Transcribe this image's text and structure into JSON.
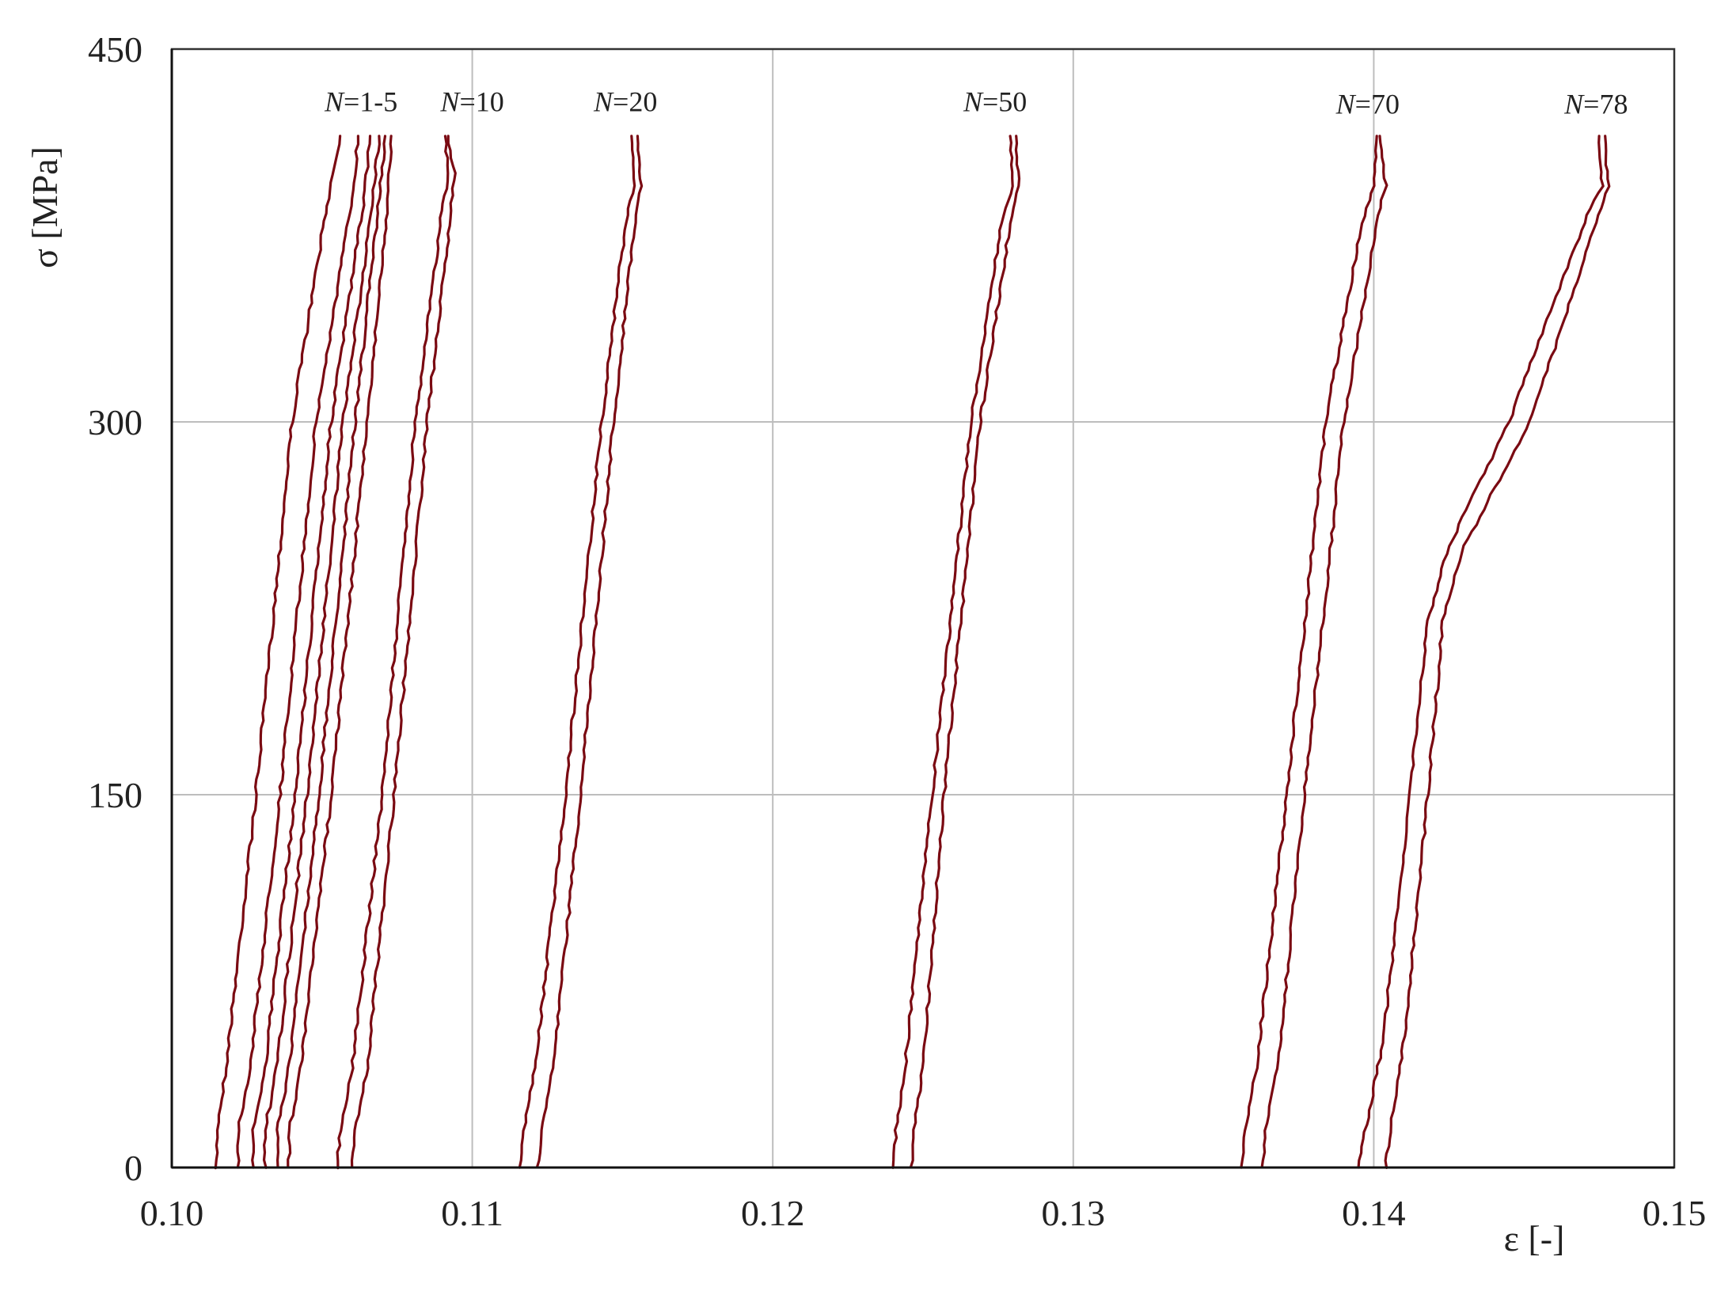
{
  "chart_data": {
    "type": "line",
    "title": "",
    "xlabel": "ε [-]",
    "ylabel": "σ [MPa]",
    "xlim": [
      0.1,
      0.15
    ],
    "ylim": [
      0,
      450
    ],
    "grid": true,
    "x_ticks": [
      0.1,
      0.11,
      0.12,
      0.13,
      0.14,
      0.15
    ],
    "x_tick_labels": [
      "0.10",
      "0.11",
      "0.12",
      "0.13",
      "0.14",
      "0.15"
    ],
    "y_ticks": [
      0,
      150,
      300,
      450
    ],
    "y_tick_labels": [
      "0",
      "150",
      "300",
      "450"
    ],
    "series_color": "#7a0a12",
    "series": [
      {
        "group": "N=1-5",
        "x": [
          0.1015,
          0.1015,
          0.1018,
          0.1028,
          0.104,
          0.1052,
          0.1056
        ],
        "y": [
          0,
          15,
          40,
          150,
          300,
          390,
          415
        ]
      },
      {
        "group": "N=1-5",
        "x": [
          0.1022,
          0.1022,
          0.1026,
          0.1036,
          0.1048,
          0.106,
          0.1062
        ],
        "y": [
          0,
          15,
          40,
          150,
          300,
          390,
          415
        ]
      },
      {
        "group": "N=1-5",
        "x": [
          0.1027,
          0.1027,
          0.1031,
          0.1041,
          0.1053,
          0.1064,
          0.1066
        ],
        "y": [
          0,
          15,
          40,
          150,
          300,
          390,
          415
        ]
      },
      {
        "group": "N=1-5",
        "x": [
          0.1031,
          0.1031,
          0.1035,
          0.1045,
          0.1057,
          0.1067,
          0.1069
        ],
        "y": [
          0,
          15,
          40,
          150,
          300,
          390,
          415
        ]
      },
      {
        "group": "N=1-5",
        "x": [
          0.1035,
          0.1035,
          0.1039,
          0.1049,
          0.1061,
          0.1069,
          0.1071
        ],
        "y": [
          0,
          15,
          40,
          150,
          300,
          390,
          415
        ]
      },
      {
        "group": "N=1-5",
        "x": [
          0.1039,
          0.1039,
          0.1043,
          0.1053,
          0.1065,
          0.1072,
          0.1073
        ],
        "y": [
          0,
          15,
          40,
          150,
          300,
          390,
          415
        ]
      },
      {
        "group": "N=10",
        "x": [
          0.1055,
          0.1056,
          0.106,
          0.107,
          0.1081,
          0.109,
          0.1092,
          0.1091
        ],
        "y": [
          0,
          15,
          40,
          150,
          300,
          385,
          400,
          415
        ]
      },
      {
        "group": "N=10",
        "x": [
          0.106,
          0.1061,
          0.1065,
          0.1074,
          0.1085,
          0.1093,
          0.1094,
          0.1092
        ],
        "y": [
          0,
          15,
          40,
          150,
          300,
          385,
          400,
          415
        ]
      },
      {
        "group": "N=20",
        "x": [
          0.1116,
          0.1117,
          0.1121,
          0.1131,
          0.1143,
          0.1151,
          0.1154,
          0.1153
        ],
        "y": [
          0,
          15,
          40,
          150,
          300,
          380,
          395,
          415
        ]
      },
      {
        "group": "N=20",
        "x": [
          0.1122,
          0.1123,
          0.1127,
          0.1136,
          0.1147,
          0.1154,
          0.1156,
          0.1155
        ],
        "y": [
          0,
          15,
          40,
          150,
          300,
          380,
          395,
          415
        ]
      },
      {
        "group": "N=50",
        "x": [
          0.124,
          0.1241,
          0.1244,
          0.1253,
          0.1266,
          0.1276,
          0.128,
          0.1279
        ],
        "y": [
          0,
          15,
          40,
          150,
          300,
          380,
          395,
          415
        ]
      },
      {
        "group": "N=50",
        "x": [
          0.1246,
          0.1247,
          0.125,
          0.1257,
          0.1269,
          0.1279,
          0.1282,
          0.1281
        ],
        "y": [
          0,
          15,
          40,
          150,
          300,
          380,
          395,
          415
        ]
      },
      {
        "group": "N=70",
        "x": [
          0.1356,
          0.1357,
          0.1361,
          0.1371,
          0.1384,
          0.1396,
          0.14,
          0.1401
        ],
        "y": [
          0,
          15,
          40,
          150,
          300,
          380,
          395,
          415
        ]
      },
      {
        "group": "N=70",
        "x": [
          0.1363,
          0.1364,
          0.1368,
          0.1377,
          0.139,
          0.1401,
          0.1404,
          0.1402
        ],
        "y": [
          0,
          15,
          40,
          150,
          300,
          380,
          395,
          415
        ]
      },
      {
        "group": "N=78",
        "x": [
          0.1395,
          0.1398,
          0.1403,
          0.1412,
          0.1418,
          0.1425,
          0.1445,
          0.147,
          0.1476,
          0.1475
        ],
        "y": [
          0,
          20,
          50,
          150,
          220,
          250,
          300,
          380,
          395,
          415
        ]
      },
      {
        "group": "N=78",
        "x": [
          0.1404,
          0.1406,
          0.141,
          0.1418,
          0.1423,
          0.143,
          0.1452,
          0.1474,
          0.1478,
          0.1477
        ],
        "y": [
          0,
          20,
          50,
          150,
          220,
          250,
          300,
          380,
          395,
          415
        ]
      }
    ],
    "annotations": [
      {
        "text": "N=1-5",
        "x": 0.1063,
        "y": 425
      },
      {
        "text": "N=10",
        "x": 0.11,
        "y": 425
      },
      {
        "text": "N=20",
        "x": 0.1151,
        "y": 425
      },
      {
        "text": "N=50",
        "x": 0.1274,
        "y": 425
      },
      {
        "text": "N=70",
        "x": 0.1398,
        "y": 424
      },
      {
        "text": "N=78",
        "x": 0.1474,
        "y": 424
      }
    ]
  }
}
